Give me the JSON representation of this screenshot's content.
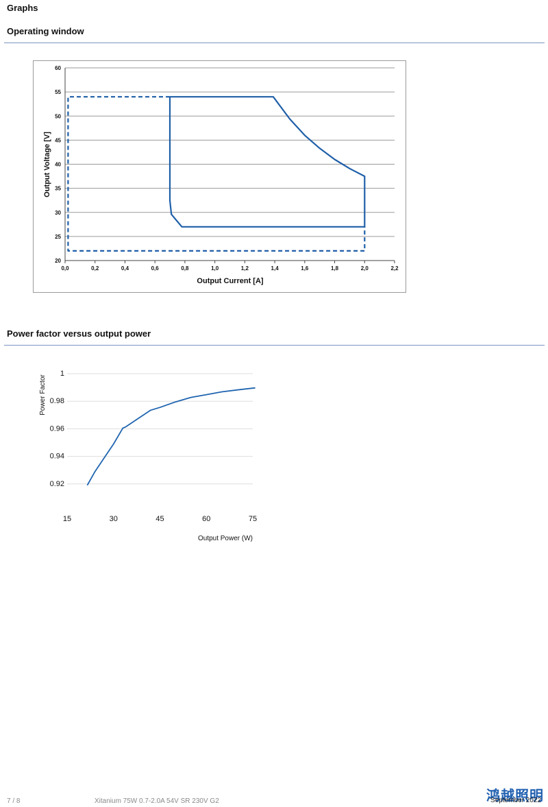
{
  "page": {
    "section_title": "Graphs",
    "footer_page": "7 / 8",
    "footer_product": "Xitanium 75W 0.7-2.0A 54V SR 230V G2",
    "footer_date": "September 2022",
    "logo_text": "鸿越照明"
  },
  "charts": {
    "operating_window": {
      "heading": "Operating window"
    },
    "power_factor": {
      "heading": "Power factor versus output power"
    }
  },
  "chart_data": [
    {
      "type": "line",
      "title": "",
      "xlabel": "Output Current [A]",
      "ylabel": "Output Voltage [V]",
      "xlim": [
        0,
        2.2
      ],
      "ylim": [
        20,
        60
      ],
      "x_ticks": [
        "0,0",
        "0,2",
        "0,4",
        "0,6",
        "0,8",
        "1,0",
        "1,2",
        "1,4",
        "1,6",
        "1,8",
        "2,0",
        "2,2"
      ],
      "y_ticks": [
        "20",
        "25",
        "30",
        "35",
        "40",
        "45",
        "50",
        "55",
        "60"
      ],
      "grid": true,
      "series": [
        {
          "style": "solid",
          "color": "#1f5fa8",
          "points": [
            [
              0.7,
              54
            ],
            [
              1.39,
              54
            ],
            [
              1.5,
              49.4
            ],
            [
              1.6,
              46
            ],
            [
              1.7,
              43.3
            ],
            [
              1.8,
              41
            ],
            [
              1.9,
              39.1
            ],
            [
              2.0,
              37.5
            ],
            [
              2.0,
              27
            ],
            [
              0.78,
              27
            ],
            [
              0.71,
              29.6
            ],
            [
              0.7,
              32.5
            ],
            [
              0.7,
              54
            ]
          ]
        },
        {
          "style": "dashed",
          "color": "#1f5fa8",
          "points": [
            [
              0.7,
              54
            ],
            [
              0.02,
              54
            ],
            [
              0.02,
              22
            ],
            [
              2.0,
              22
            ],
            [
              2.0,
              27
            ]
          ]
        }
      ]
    },
    {
      "type": "line",
      "title": "",
      "xlabel": "Output Power (W)",
      "ylabel": "Power Factor",
      "xlim": [
        15,
        75
      ],
      "ylim": [
        0.9,
        1
      ],
      "x_ticks": [
        "15",
        "30",
        "45",
        "60",
        "75"
      ],
      "y_ticks": [
        "0.92",
        "0.94",
        "0.96",
        "0.98",
        "1"
      ],
      "grid": true,
      "series": [
        {
          "style": "solid",
          "color": "#1f64b0",
          "points": [
            [
              21.5,
              0.919
            ],
            [
              24,
              0.929
            ],
            [
              27,
              0.939
            ],
            [
              30,
              0.949
            ],
            [
              33,
              0.9605
            ],
            [
              34,
              0.9615
            ],
            [
              38,
              0.9675
            ],
            [
              42,
              0.9735
            ],
            [
              45,
              0.9755
            ],
            [
              50,
              0.9795
            ],
            [
              55,
              0.9828
            ],
            [
              60,
              0.9848
            ],
            [
              65,
              0.9868
            ],
            [
              70,
              0.9882
            ],
            [
              75.8,
              0.9897
            ]
          ]
        }
      ]
    }
  ]
}
